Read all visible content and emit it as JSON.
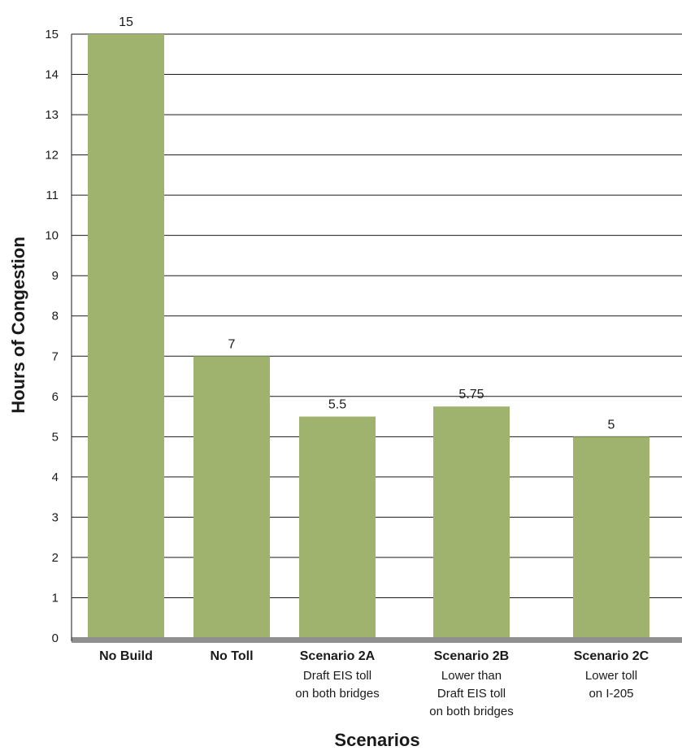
{
  "chart_data": {
    "type": "bar",
    "title": "",
    "xlabel": "Scenarios",
    "ylabel": "Hours of Congestion",
    "ylim": [
      0,
      15
    ],
    "yticks": [
      "0",
      "1",
      "2",
      "3",
      "4",
      "5",
      "6",
      "7",
      "8",
      "9",
      "10",
      "11",
      "12",
      "13",
      "14",
      "15"
    ],
    "grid": true,
    "categories": [
      {
        "label": "No Build",
        "sub": []
      },
      {
        "label": "No Toll",
        "sub": []
      },
      {
        "label": "Scenario 2A",
        "sub": [
          "Draft EIS toll",
          "on both bridges"
        ]
      },
      {
        "label": "Scenario 2B",
        "sub": [
          "Lower than",
          "Draft EIS toll",
          "on both bridges"
        ]
      },
      {
        "label": "Scenario 2C",
        "sub": [
          "Lower toll",
          "on I-205"
        ]
      }
    ],
    "values": [
      15,
      7,
      5.5,
      5.75,
      5
    ],
    "value_labels": [
      "15",
      "7",
      "5.5",
      "5.75",
      "5"
    ],
    "colors": {
      "bar": "#9fb36f",
      "grid": "#1a1a1a",
      "baseline": "#8f8f8f",
      "text": "#1a1a1a"
    }
  }
}
